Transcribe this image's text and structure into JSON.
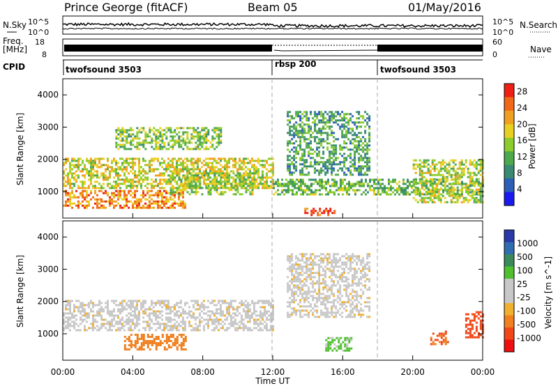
{
  "header": {
    "radar": "Prince George (fitACF)",
    "beam": "Beam 05",
    "date": "01/May/2016"
  },
  "panels": {
    "nsky": {
      "label": "N.Sky",
      "ticks": [
        "10^5",
        "10^0"
      ],
      "right_label": "N.Search",
      "right_ticks": [
        "10^5",
        "10^0"
      ]
    },
    "freq": {
      "label_1": "Freq.",
      "label_2": "[MHz]",
      "ticks": [
        "18",
        "8"
      ],
      "right_label": "Nave",
      "right_ticks": [
        "60",
        "0"
      ]
    },
    "cpid": {
      "label": "CPID"
    }
  },
  "cpid_modes": [
    {
      "name": "twofsound 3503",
      "start_hour": 0
    },
    {
      "name": "rbsp 200",
      "start_hour": 12
    },
    {
      "name": "twofsound 3503",
      "start_hour": 18
    }
  ],
  "time_axis": {
    "label": "Time UT",
    "ticks": [
      "00:00",
      "04:00",
      "08:00",
      "12:00",
      "16:00",
      "20:00",
      "00:00"
    ]
  },
  "colors": {
    "power": [
      "#1a1aee",
      "#2c5fb8",
      "#3a8a73",
      "#4ea84c",
      "#8ccc2c",
      "#e8d020",
      "#f0a020",
      "#f06818",
      "#ee2016"
    ],
    "velocity": [
      "#ee1010",
      "#f04818",
      "#f08020",
      "#f0b030",
      "#c8c8c8",
      "#c8c8c8",
      "#50c030",
      "#3a8a5a",
      "#2f6db0",
      "#2a3aa8"
    ]
  },
  "chart_data": [
    {
      "type": "heatmap",
      "title": "Power",
      "xlabel": "Time UT",
      "ylabel": "Slant Range [km]",
      "x_range_hours": [
        0,
        24
      ],
      "ylim": [
        180,
        4500
      ],
      "y_ticks": [
        1000,
        2000,
        3000,
        4000
      ],
      "colorbar": {
        "label": "Power [dB]",
        "ticks": [
          "4",
          "8",
          "12",
          "16",
          "20",
          "24",
          "28"
        ],
        "range": [
          0,
          30
        ]
      },
      "regions": [
        {
          "t": [
            0.0,
            12.0
          ],
          "r": [
            1100,
            2050
          ],
          "level": 18
        },
        {
          "t": [
            0.0,
            7.0
          ],
          "r": [
            500,
            1050
          ],
          "level": 24
        },
        {
          "t": [
            6.0,
            11.0
          ],
          "r": [
            900,
            1600
          ],
          "level": 15
        },
        {
          "t": [
            3.0,
            9.0
          ],
          "r": [
            2300,
            3000
          ],
          "level": 14
        },
        {
          "t": [
            12.8,
            17.5
          ],
          "r": [
            1500,
            3500
          ],
          "level": 10
        },
        {
          "t": [
            12.0,
            24.0
          ],
          "r": [
            900,
            1400
          ],
          "level": 12
        },
        {
          "t": [
            13.8,
            15.5
          ],
          "r": [
            300,
            500
          ],
          "level": 28
        },
        {
          "t": [
            20.0,
            24.0
          ],
          "r": [
            700,
            2000
          ],
          "level": 16
        }
      ]
    },
    {
      "type": "heatmap",
      "title": "Velocity",
      "xlabel": "Time UT",
      "ylabel": "Slant Range [km]",
      "x_range_hours": [
        0,
        24
      ],
      "ylim": [
        180,
        4500
      ],
      "y_ticks": [
        1000,
        2000,
        3000,
        4000
      ],
      "colorbar": {
        "label": "Velocity [m s^-1]",
        "ticks": [
          "-1000",
          "-500",
          "-100",
          "-25",
          "25",
          "100",
          "500",
          "1000"
        ]
      },
      "regions": [
        {
          "t": [
            0.0,
            12.0
          ],
          "r": [
            1100,
            2050
          ],
          "velocity": 0
        },
        {
          "t": [
            3.5,
            7.0
          ],
          "r": [
            500,
            1000
          ],
          "velocity": -300
        },
        {
          "t": [
            12.8,
            17.5
          ],
          "r": [
            1500,
            3500
          ],
          "velocity": 0
        },
        {
          "t": [
            15.0,
            16.5
          ],
          "r": [
            500,
            900
          ],
          "velocity": 150
        },
        {
          "t": [
            21.0,
            22.0
          ],
          "r": [
            700,
            1100
          ],
          "velocity": -500
        },
        {
          "t": [
            23.0,
            24.0
          ],
          "r": [
            900,
            1700
          ],
          "velocity": -800
        }
      ]
    }
  ]
}
